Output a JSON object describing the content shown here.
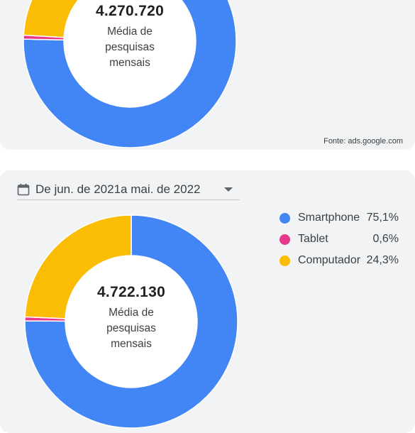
{
  "colors": {
    "smartphone": "#4285f4",
    "tablet": "#e8388a",
    "computer": "#fbbc04",
    "card_bg": "#f1f3f4"
  },
  "top_panel": {
    "center_value": "4.270.720",
    "center_label": "Média de pesquisas mensais",
    "source": "Fonte: ads.google.com"
  },
  "bottom_panel": {
    "date_range": "De jun. de 2021a mai. de 2022",
    "center_value": "4.722.130",
    "center_label": "Média de pesquisas mensais",
    "legend": [
      {
        "name": "Smartphone",
        "pct": "75,1%",
        "icon": "blue-dot-icon"
      },
      {
        "name": "Tablet",
        "pct": "0,6%",
        "icon": "pink-dot-icon"
      },
      {
        "name": "Computador",
        "pct": "24,3%",
        "icon": "yellow-dot-icon"
      }
    ]
  },
  "chart_data": [
    {
      "type": "pie",
      "variant": "donut",
      "categories": [
        "Smartphone",
        "Tablet",
        "Computador"
      ],
      "values": [
        75.3,
        0.6,
        24.1
      ],
      "center_value": "4.270.720",
      "center_label": "Média de pesquisas mensais"
    },
    {
      "type": "pie",
      "variant": "donut",
      "categories": [
        "Smartphone",
        "Tablet",
        "Computador"
      ],
      "values": [
        75.1,
        0.6,
        24.3
      ],
      "center_value": "4.722.130",
      "center_label": "Média de pesquisas mensais",
      "legend_position": "right"
    }
  ]
}
